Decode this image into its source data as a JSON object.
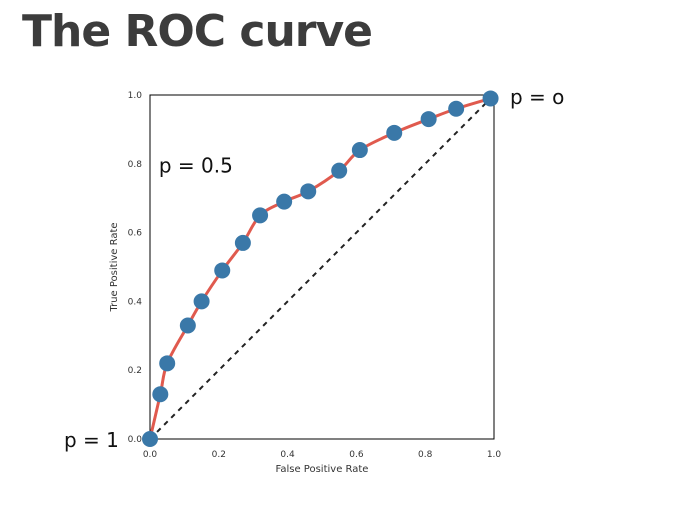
{
  "title": "The ROC curve",
  "chart_data": {
    "type": "line",
    "xlabel": "False Positive Rate",
    "ylabel": "True Positive Rate",
    "xlim": [
      0.0,
      1.0
    ],
    "ylim": [
      0.0,
      1.0
    ],
    "xticks": [
      "0.0",
      "0.2",
      "0.4",
      "0.6",
      "0.8",
      "1.0"
    ],
    "yticks": [
      "0.0",
      "0.2",
      "0.4",
      "0.6",
      "0.8",
      "1.0"
    ],
    "grid": false,
    "series": [
      {
        "x": [
          0.0,
          0.03,
          0.05,
          0.11,
          0.15,
          0.21,
          0.27,
          0.32,
          0.39,
          0.46,
          0.55,
          0.61,
          0.71,
          0.81,
          0.89,
          0.99
        ],
        "y": [
          0.0,
          0.13,
          0.22,
          0.33,
          0.4,
          0.49,
          0.57,
          0.65,
          0.69,
          0.72,
          0.78,
          0.84,
          0.89,
          0.93,
          0.96,
          0.99
        ],
        "line_color": "#e05a4e",
        "marker_color": "#3a78a8"
      }
    ],
    "reference_line": {
      "x": [
        0.0,
        1.0
      ],
      "y": [
        0.0,
        1.0
      ],
      "style": "dashed",
      "color": "#222222"
    },
    "annotations": [
      {
        "text": "p = 1",
        "x": 0.0,
        "y": 0.0
      },
      {
        "text": "p = 0.5",
        "x": 0.27,
        "y": 0.74
      },
      {
        "text": "p = o",
        "x": 1.0,
        "y": 1.0
      }
    ]
  }
}
